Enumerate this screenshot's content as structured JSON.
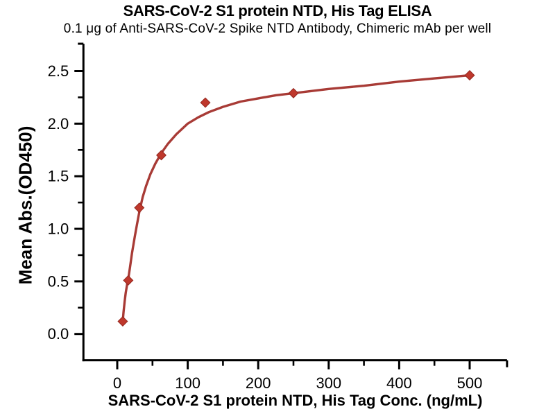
{
  "chart_data": {
    "type": "scatter",
    "title": "SARS-CoV-2 S1 protein NTD, His Tag ELISA",
    "subtitle": "0.1 μg of Anti-SARS-CoV-2 Spike NTD Antibody, Chimeric mAb per well",
    "xlabel": "SARS-CoV-2 S1 protein NTD, His Tag Conc. (ng/mL)",
    "ylabel": "Mean Abs.(OD450)",
    "xlim": [
      -48,
      553
    ],
    "ylim": [
      -0.25,
      2.76
    ],
    "grid": false,
    "legend": false,
    "axis_color": "#000000",
    "x_ticks": {
      "values": [
        0,
        100,
        200,
        300,
        400,
        500
      ],
      "labels": [
        "0",
        "100",
        "200",
        "300",
        "400",
        "500"
      ],
      "minor": [
        50,
        150,
        250,
        350,
        450
      ]
    },
    "y_ticks": {
      "values": [
        0,
        0.5,
        1,
        1.5,
        2,
        2.5
      ],
      "labels": [
        "0.0",
        "0.5",
        "1.0",
        "1.5",
        "2.0",
        "2.5"
      ],
      "minor": [
        0.25,
        0.75,
        1.25,
        1.75,
        2.25
      ]
    },
    "series": [
      {
        "name": "Anti-SARS-CoV-2 Spike NTD Antibody, Chimeric mAb",
        "marker": "diamond",
        "marker_color": "#bf382c",
        "marker_edge_color": "#93271f",
        "line_color": "#a83b36",
        "points": [
          [
            7.8,
            0.12
          ],
          [
            15.6,
            0.51
          ],
          [
            31.3,
            1.2
          ],
          [
            62.5,
            1.7
          ],
          [
            125,
            2.2
          ],
          [
            250,
            2.29
          ],
          [
            500,
            2.46
          ]
        ],
        "fit_curve": [
          [
            7.8,
            0.12
          ],
          [
            9,
            0.21
          ],
          [
            10.5,
            0.31
          ],
          [
            12,
            0.39
          ],
          [
            14,
            0.47
          ],
          [
            15.6,
            0.52
          ],
          [
            18,
            0.63
          ],
          [
            21,
            0.77
          ],
          [
            25,
            0.93
          ],
          [
            28,
            1.04
          ],
          [
            31.3,
            1.16
          ],
          [
            36,
            1.3
          ],
          [
            41,
            1.41
          ],
          [
            47,
            1.52
          ],
          [
            54,
            1.62
          ],
          [
            62.5,
            1.72
          ],
          [
            72,
            1.81
          ],
          [
            84,
            1.9
          ],
          [
            100,
            2.0
          ],
          [
            115,
            2.06
          ],
          [
            130,
            2.11
          ],
          [
            150,
            2.16
          ],
          [
            175,
            2.21
          ],
          [
            200,
            2.24
          ],
          [
            225,
            2.27
          ],
          [
            250,
            2.29
          ],
          [
            300,
            2.33
          ],
          [
            350,
            2.36
          ],
          [
            400,
            2.4
          ],
          [
            450,
            2.43
          ],
          [
            500,
            2.46
          ]
        ]
      }
    ]
  }
}
